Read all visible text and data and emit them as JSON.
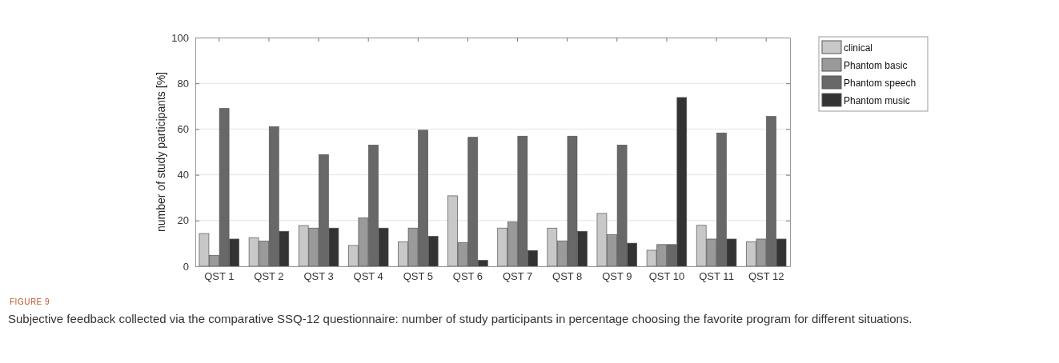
{
  "chart_data": {
    "type": "bar",
    "ylabel": "number of study participants [%]",
    "categories": [
      "QST 1",
      "QST 2",
      "QST 3",
      "QST 4",
      "QST 5",
      "QST 6",
      "QST 7",
      "QST 8",
      "QST 9",
      "QST 10",
      "QST 11",
      "QST 12"
    ],
    "series": [
      {
        "name": "clinical",
        "color": "#c8c8c8",
        "values": [
          14.3,
          12.5,
          17.8,
          9.1,
          10.7,
          30.8,
          16.7,
          16.7,
          23.1,
          7,
          17.9,
          10.7
        ]
      },
      {
        "name": "Phantom basic",
        "color": "#9a9a9a",
        "values": [
          4.8,
          11,
          16.7,
          21.2,
          16.7,
          10.3,
          19.4,
          11.1,
          13.8,
          9.5,
          11.9,
          11.9
        ]
      },
      {
        "name": "Phantom speech",
        "color": "#686868",
        "values": [
          69,
          61,
          48.8,
          53,
          59.5,
          56.4,
          56.9,
          56.9,
          53,
          9.5,
          58.3,
          65.5
        ]
      },
      {
        "name": "Phantom music",
        "color": "#333333",
        "values": [
          11.9,
          15.3,
          16.7,
          16.7,
          13.1,
          2.6,
          6.9,
          15.3,
          10.1,
          73.8,
          11.9,
          11.9
        ]
      }
    ],
    "ylim": [
      0,
      100
    ],
    "yticks": [
      0,
      20,
      40,
      60,
      80,
      100
    ],
    "grid": "y",
    "legend": "top right",
    "annotations": [
      "FIGURE 9",
      "Subjective feedback collected via the comparative SSQ-12 questionnaire: number of study participants in percentage choosing the favorite program for different situations."
    ]
  }
}
